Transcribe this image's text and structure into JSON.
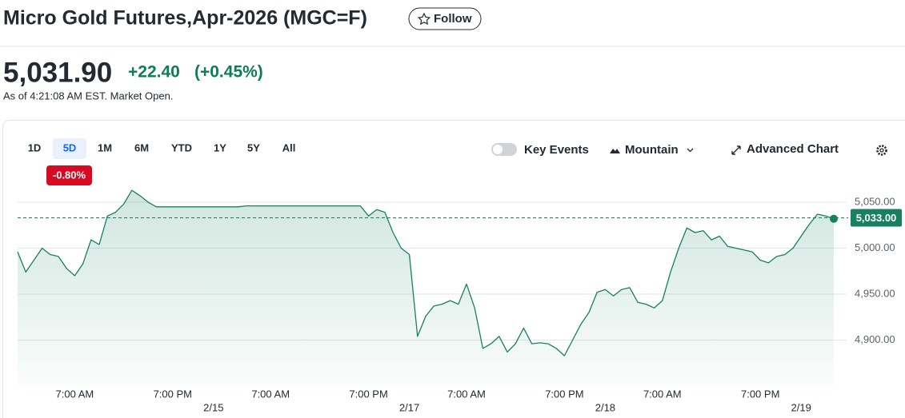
{
  "header": {
    "title": "Micro Gold Futures,Apr-2026 (MGC=F)",
    "follow_button": "Follow"
  },
  "quote": {
    "price": "5,031.90",
    "change": "+22.40",
    "change_percent": "(+0.45%)",
    "as_of": "As of 4:21:08 AM EST. Market Open."
  },
  "toolbar": {
    "ranges": [
      "1D",
      "5D",
      "1M",
      "6M",
      "YTD",
      "1Y",
      "5Y",
      "All"
    ],
    "selected_range": "5D",
    "range_change": "-0.80%",
    "key_events": "Key Events",
    "chart_type": "Mountain",
    "advanced_chart": "Advanced Chart"
  },
  "chart_data": {
    "type": "area",
    "color": "#17805f",
    "grid": true,
    "ylim": [
      4850,
      5070
    ],
    "yticks": [
      {
        "value": 4900,
        "label": "4,900.00"
      },
      {
        "value": 4950,
        "label": "4,950.00"
      },
      {
        "value": 5000,
        "label": "5,000.00"
      },
      {
        "value": 5050,
        "label": "5,050.00"
      }
    ],
    "price_marker": {
      "value": 5033,
      "label": "5,033.00"
    },
    "categories": [
      null,
      null,
      null,
      null,
      null,
      null,
      null,
      "7:00 AM",
      null,
      null,
      null,
      null,
      null,
      null,
      null,
      null,
      null,
      null,
      null,
      "7:00 PM",
      null,
      null,
      null,
      null,
      null,
      null,
      null,
      null,
      null,
      null,
      null,
      "7:00 AM",
      null,
      null,
      null,
      null,
      null,
      null,
      null,
      null,
      null,
      null,
      null,
      "7:00 PM",
      null,
      null,
      null,
      null,
      null,
      null,
      null,
      null,
      null,
      null,
      null,
      "7:00 AM",
      null,
      null,
      null,
      null,
      null,
      null,
      null,
      null,
      null,
      null,
      null,
      "7:00 PM",
      null,
      null,
      null,
      null,
      null,
      null,
      null,
      null,
      null,
      null,
      null,
      "7:00 AM",
      null,
      null,
      null,
      null,
      null,
      null,
      null,
      null,
      null,
      null,
      null,
      "7:00 PM",
      null,
      null,
      null,
      null,
      null,
      null,
      null,
      null,
      null
    ],
    "dates": [
      null,
      null,
      null,
      null,
      null,
      null,
      null,
      null,
      null,
      null,
      null,
      null,
      null,
      null,
      null,
      null,
      null,
      null,
      null,
      null,
      null,
      null,
      null,
      null,
      "2/15",
      null,
      null,
      null,
      null,
      null,
      null,
      null,
      null,
      null,
      null,
      null,
      null,
      null,
      null,
      null,
      null,
      null,
      null,
      null,
      null,
      null,
      null,
      null,
      "2/17",
      null,
      null,
      null,
      null,
      null,
      null,
      null,
      null,
      null,
      null,
      null,
      null,
      null,
      null,
      null,
      null,
      null,
      null,
      null,
      null,
      null,
      null,
      null,
      "2/18",
      null,
      null,
      null,
      null,
      null,
      null,
      null,
      null,
      null,
      null,
      null,
      null,
      null,
      null,
      null,
      null,
      null,
      null,
      null,
      null,
      null,
      null,
      null,
      "2/19",
      null,
      null,
      null,
      null
    ],
    "values": [
      4996,
      4974,
      4987,
      5000,
      4993,
      4991,
      4978,
      4970,
      4983,
      5009,
      5004,
      5035,
      5039,
      5048,
      5063,
      5057,
      5050,
      5045,
      5045,
      5045,
      5045,
      5045,
      5045,
      5045,
      5045,
      5045,
      5045,
      5045,
      5046,
      5046,
      5046,
      5046,
      5046,
      5046,
      5046,
      5046,
      5046,
      5046,
      5046,
      5046,
      5046,
      5046,
      5046,
      5035,
      5042,
      5039,
      5017,
      5000,
      4993,
      4904,
      4926,
      4937,
      4939,
      4943,
      4939,
      4961,
      4935,
      4891,
      4896,
      4904,
      4887,
      4896,
      4913,
      4896,
      4897,
      4896,
      4891,
      4883,
      4900,
      4917,
      4930,
      4952,
      4955,
      4948,
      4955,
      4957,
      4941,
      4939,
      4935,
      4943,
      4974,
      5000,
      5022,
      5017,
      5019,
      5009,
      5013,
      5002,
      5000,
      4998,
      4996,
      4987,
      4984,
      4991,
      4993,
      5000,
      5013,
      5026,
      5037,
      5035,
      5032
    ]
  }
}
